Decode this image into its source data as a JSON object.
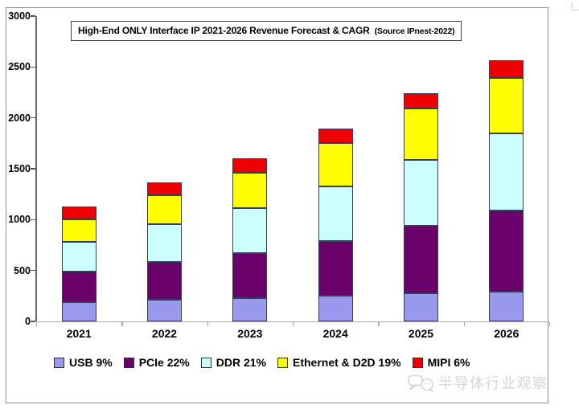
{
  "header": {
    "title_main": "High-End ONLY Interface IP 2021-2026 Revenue Forecast & CAGR",
    "title_source": "(Source IPnest-2022)"
  },
  "watermark": {
    "text": "半导体行业观察"
  },
  "chart_data": {
    "type": "bar",
    "stacked": true,
    "title": "High-End ONLY Interface IP 2021-2026 Revenue Forecast & CAGR (Source IPnest-2022)",
    "categories": [
      "2021",
      "2022",
      "2023",
      "2024",
      "2025",
      "2026"
    ],
    "series": [
      {
        "name": "USB 9%",
        "color": "#9999EE",
        "values": [
          190,
          210,
          230,
          250,
          275,
          295
        ]
      },
      {
        "name": "PCIe 22%",
        "color": "#6A006A",
        "values": [
          300,
          375,
          440,
          540,
          665,
          795
        ]
      },
      {
        "name": "DDR 21%",
        "color": "#CCFFFF",
        "values": [
          290,
          370,
          445,
          535,
          645,
          760
        ]
      },
      {
        "name": "Ethernet & D2D 19%",
        "color": "#FFFF00",
        "values": [
          220,
          285,
          345,
          425,
          505,
          540
        ]
      },
      {
        "name": "MIPI 6%",
        "color": "#EE0000",
        "values": [
          130,
          125,
          140,
          145,
          155,
          175
        ]
      }
    ],
    "totals": [
      1130,
      1365,
      1600,
      1895,
      2245,
      2565
    ],
    "xlabel": "",
    "ylabel": "",
    "ylim": [
      0,
      3000
    ],
    "yticks": [
      0,
      500,
      1000,
      1500,
      2000,
      2500,
      3000
    ],
    "grid": false,
    "legend_position": "bottom"
  }
}
